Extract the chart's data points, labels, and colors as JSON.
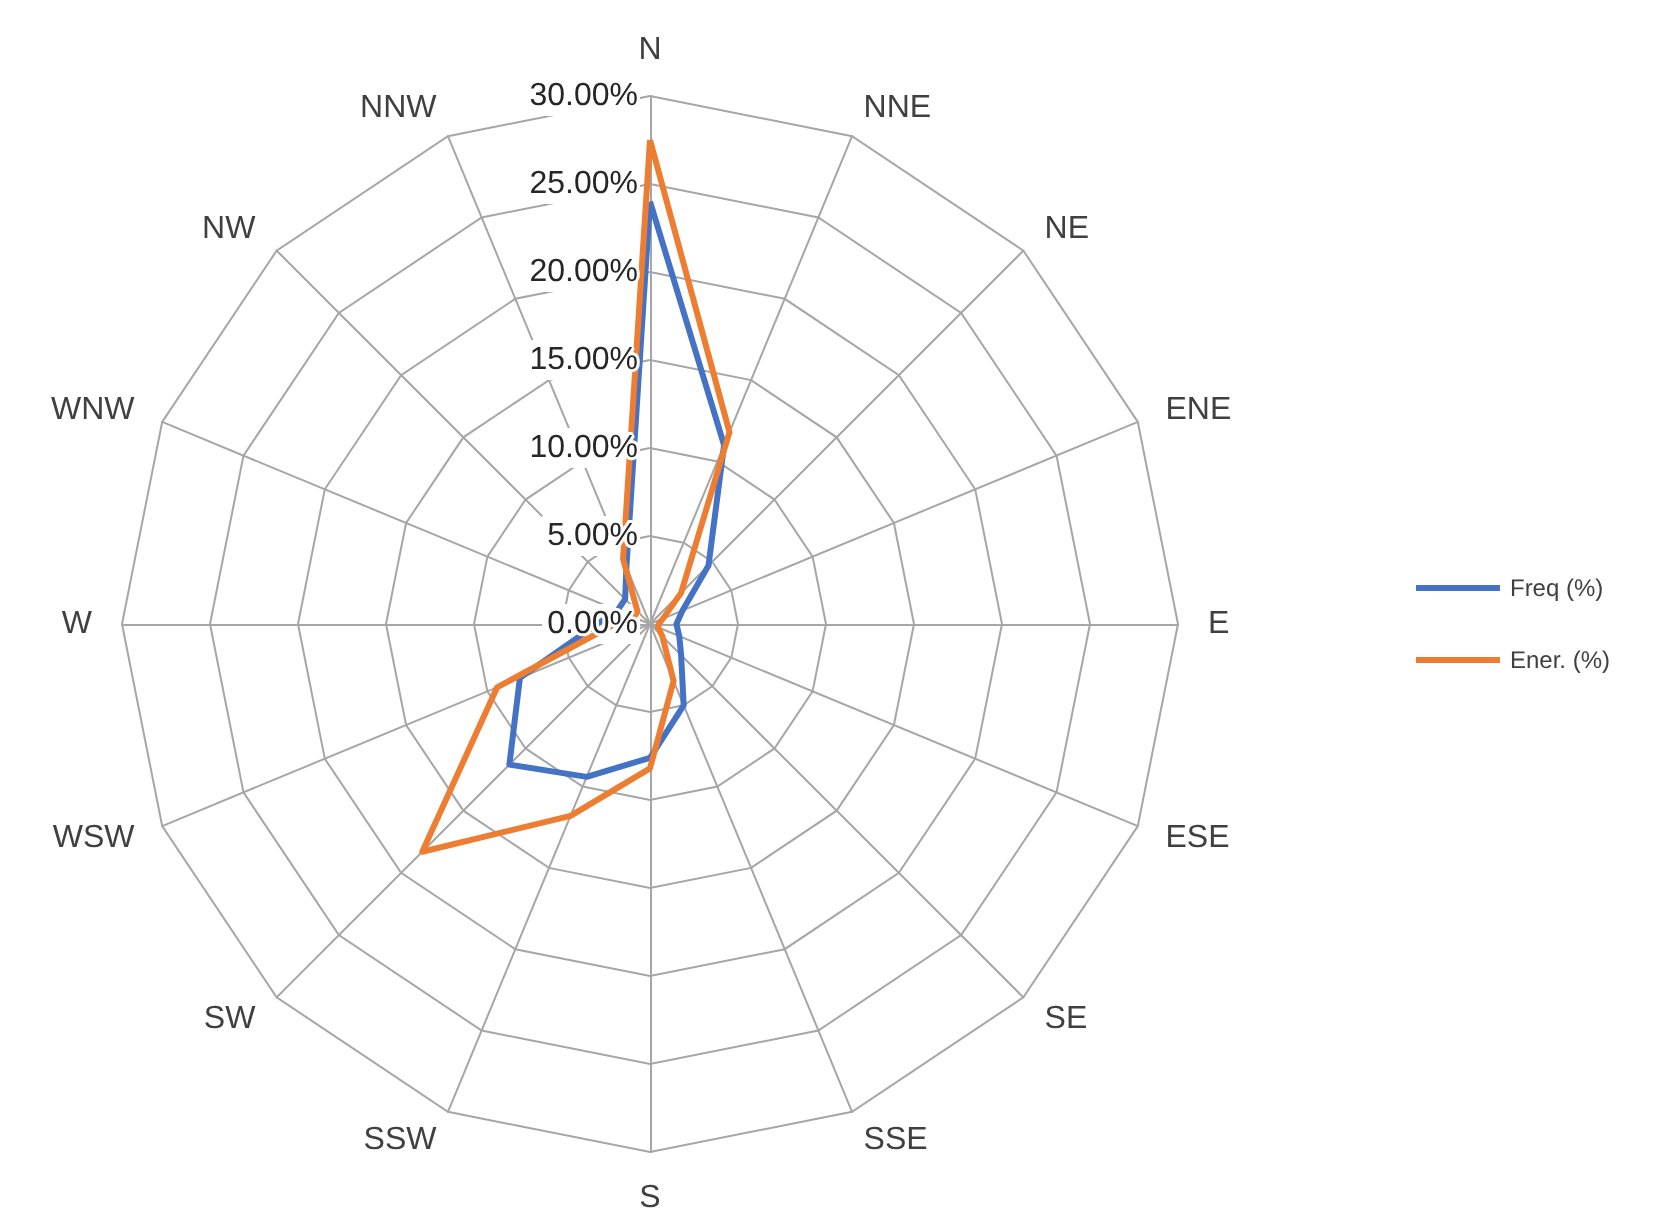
{
  "chart_data": {
    "type": "radar",
    "categories": [
      "N",
      "NNE",
      "NE",
      "ENE",
      "E",
      "ESE",
      "SE",
      "SSE",
      "S",
      "SSW",
      "SW",
      "WSW",
      "W",
      "WNW",
      "NW",
      "NNW"
    ],
    "series": [
      {
        "name": "Freq (%)",
        "color": "#4472c4",
        "values": [
          24,
          11,
          4.7,
          2,
          1.5,
          1.8,
          2.5,
          5,
          7.6,
          9.4,
          11.3,
          8,
          3,
          2,
          2,
          3.5
        ]
      },
      {
        "name": "Ener. (%)",
        "color": "#ed7d31",
        "values": [
          27.5,
          11.8,
          2.5,
          0.8,
          0.5,
          0.5,
          1,
          3.5,
          8.2,
          11.8,
          18.3,
          9.4,
          2,
          1,
          1,
          4
        ]
      }
    ],
    "ylim": [
      0,
      30
    ],
    "yticks": [
      {
        "value": 0,
        "label": "0.00%"
      },
      {
        "value": 5,
        "label": "5.00%"
      },
      {
        "value": 10,
        "label": "10.00%"
      },
      {
        "value": 15,
        "label": "15.00%"
      },
      {
        "value": 20,
        "label": "20.00%"
      },
      {
        "value": 25,
        "label": "25.00%"
      },
      {
        "value": 30,
        "label": "30.00%"
      }
    ],
    "legend": "right",
    "marker": "none",
    "line_style": "solid",
    "grid": true
  }
}
